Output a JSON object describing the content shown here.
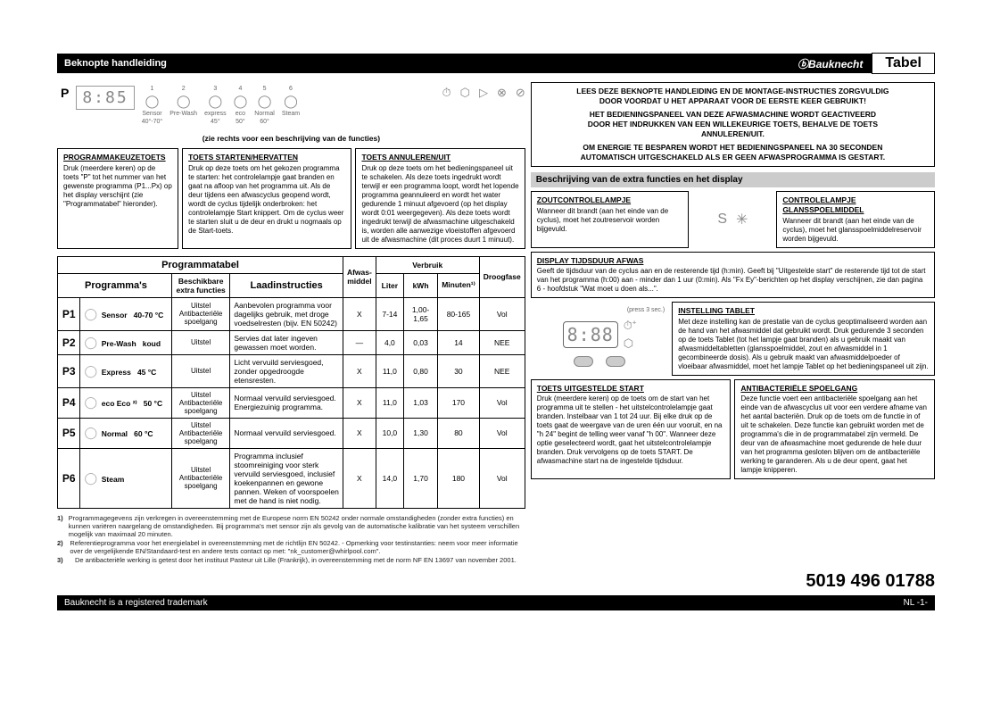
{
  "header": {
    "title": "Beknopte handleiding",
    "brand": "Bauknecht",
    "tab": "Tabel"
  },
  "panel": {
    "p_label": "P",
    "display": "8:85",
    "progs": [
      {
        "n": "1",
        "name": "Sensor",
        "t": "40°-70°"
      },
      {
        "n": "2",
        "name": "Pre-Wash",
        "t": ""
      },
      {
        "n": "3",
        "name": "express",
        "t": "45°"
      },
      {
        "n": "4",
        "name": "eco",
        "t": "50°"
      },
      {
        "n": "5",
        "name": "Normal",
        "t": "60°"
      },
      {
        "n": "6",
        "name": "Steam",
        "t": ""
      }
    ],
    "right_icons": [
      "⏱",
      "⬡",
      "▷",
      "⊗",
      "⊘"
    ]
  },
  "fn_note": "(zie rechts voor een beschrijving van de functies)",
  "keys": {
    "prog": {
      "hd": "PROGRAMMAKEUZETOETS",
      "txt": "Druk (meerdere keren) op de toets \"P\" tot het nummer van het gewenste programma (P1...Px) op het display verschijnt (zie \"Programmatabel\" hieronder)."
    },
    "start": {
      "hd": "TOETS STARTEN/HERVATTEN",
      "txt": "Druk op deze toets om het gekozen programma te starten: het controlelampje gaat branden en gaat na afloop van het programma uit.\nAls de deur tijdens een afwascyclus geopend wordt, wordt de cyclus tijdelijk onderbroken: het controlelampje Start knippert. Om de cyclus weer te starten sluit u de deur en drukt u nogmaals op de Start-toets."
    },
    "cancel": {
      "hd": "TOETS ANNULEREN/UIT",
      "txt": "Druk op deze toets om het bedieningspaneel uit te schakelen. Als deze toets ingedrukt wordt terwijl er een programma loopt, wordt het lopende programma geannuleerd en wordt het water gedurende 1 minuut afgevoerd (op het display wordt 0:01 weergegeven).\nAls deze toets wordt ingedrukt terwijl de afwasmachine uitgeschakeld is, worden alle aanwezige vloeistoffen afgevoerd uit de afwasmachine (dit proces duurt 1 minuut)."
    }
  },
  "warn": {
    "l1a": "LEES DEZE BEKNOPTE HANDLEIDING EN DE MONTAGE-INSTRUCTIES ZORGVULDIG",
    "l1b": "DOOR VOORDAT U HET APPARAAT VOOR DE EERSTE KEER GEBRUIKT!",
    "l2a": "HET BEDIENINGSPANEEL VAN DEZE AFWASMACHINE WORDT GEACTIVEERD",
    "l2b": "DOOR HET INDRUKKEN VAN EEN WILLEKEURIGE TOETS, BEHALVE DE TOETS",
    "l2c": "ANNULEREN/UIT.",
    "l3a": "OM ENERGIE TE BESPAREN WORDT HET BEDIENINGSPANEEL NA 30 SECONDEN",
    "l3b": "AUTOMATISCH UITGESCHAKELD ALS ER GEEN AFWASPROGRAMMA IS GESTART."
  },
  "sect_title": "Beschrijving van de extra functies en het display",
  "desc": {
    "salt": {
      "hd": "ZOUTCONTROLELAMPJE",
      "txt": "Wanneer dit brandt (aan het einde van de cyclus), moet het zoutreservoir worden bijgevuld."
    },
    "rinse": {
      "hd": "CONTROLELAMPJE GLANSSPOELMIDDEL",
      "txt": "Wanneer dit brandt (aan het einde van de cyclus), moet het glansspoelmiddelreservoir worden bijgevuld."
    },
    "disp": {
      "hd": "DISPLAY TIJDSDUUR AFWAS",
      "txt": "Geeft de tijdsduur van de cyclus aan en de resterende tijd (h:min). Geeft bij \"Uitgestelde start\" de resterende tijd tot de start van het programma (h:00) aan - minder dan 1 uur (0:min).\nAls \"Fx Ey\"-berichten op het display verschijnen, zie dan pagina 6 - hoofdstuk \"Wat moet u doen als...\"."
    },
    "tablet": {
      "hd": "INSTELLING TABLET",
      "press": "(press 3 sec.)",
      "txt": "Met deze instelling kan de prestatie van de cyclus geoptimaliseerd worden aan de hand van het afwasmiddel dat gebruikt wordt. Druk gedurende 3 seconden op de toets Tablet (tot het lampje gaat branden) als u gebruik maakt van afwasmiddeltabletten (glansspoelmiddel, zout en afwasmiddel in 1 gecombineerde dosis).\nAls u gebruik maakt van afwasmiddelpoeder of vloeibaar afwasmiddel, moet het lampje Tablet op het bedieningspaneel uit zijn."
    },
    "delay": {
      "hd": "TOETS UITGESTELDE START",
      "txt": "Druk (meerdere keren) op de toets om de start van het programma uit te stellen - het uitstelcontrolelampje gaat branden. Instelbaar van 1 tot 24 uur.\nBij elke druk op de toets gaat de weergave van de uren één uur vooruit, en na \"h 24\" begint de telling weer vanaf \"h 00\". Wanneer deze optie geselecteerd wordt, gaat het uitstelcontrolelampje branden. Druk vervolgens op de toets START. De afwasmachine start na de ingestelde tijdsduur."
    },
    "anti": {
      "hd": "ANTIBACTERIËLE SPOELGANG",
      "txt": "Deze functie voert een antibacteriële spoelgang aan het einde van de afwascyclus uit voor een verdere afname van het aantal bacteriën. Druk op de toets om de functie in of uit te schakelen. Deze functie kan gebruikt worden met de programma's die in de programmatabel zijn vermeld. De deur van de afwasmachine moet gedurende de hele duur van het programma gesloten blijven om de antibacteriële werking te garanderen. Als u de deur opent, gaat het lampje knipperen."
    }
  },
  "table": {
    "title": "Programmatabel",
    "h_prog": "Programma's",
    "h_extra": "Beschikbare extra functies",
    "h_load": "Laadinstructies",
    "h_det": "Afwas-middel",
    "h_cons": "Verbruik",
    "h_l": "Liter",
    "h_kwh": "kWh",
    "h_min": "Minuten¹⁾",
    "h_dry": "Droogfase",
    "rows": [
      {
        "p": "P1",
        "name": "Sensor",
        "temp": "40-70 °C",
        "extra": "Uitstel Antibacteriële spoelgang",
        "load": "Aanbevolen programma voor dagelijks gebruik, met droge voedselresten (bijv. EN 50242)",
        "det": "X",
        "l": "7-14",
        "kwh": "1,00-1,65",
        "min": "80-165",
        "dry": "Vol"
      },
      {
        "p": "P2",
        "name": "Pre-Wash",
        "temp": "koud",
        "extra": "Uitstel",
        "load": "Servies dat later ingeven gewassen moet worden.",
        "det": "—",
        "l": "4,0",
        "kwh": "0,03",
        "min": "14",
        "dry": "NEE"
      },
      {
        "p": "P3",
        "name": "Express",
        "temp": "45 °C",
        "extra": "Uitstel",
        "load": "Licht vervuild serviesgoed, zonder opgedroogde etensresten.",
        "det": "X",
        "l": "11,0",
        "kwh": "0,80",
        "min": "30",
        "dry": "NEE"
      },
      {
        "p": "P4",
        "name": "eco Eco ²⁾",
        "temp": "50 °C",
        "extra": "Uitstel Antibacteriële spoelgang",
        "load": "Normaal vervuild serviesgoed. Energiezuinig programma.",
        "det": "X",
        "l": "11,0",
        "kwh": "1,03",
        "min": "170",
        "dry": "Vol"
      },
      {
        "p": "P5",
        "name": "Normal",
        "temp": "60 °C",
        "extra": "Uitstel Antibacteriële spoelgang",
        "load": "Normaal vervuild serviesgoed.",
        "det": "X",
        "l": "10,0",
        "kwh": "1,30",
        "min": "80",
        "dry": "Vol"
      },
      {
        "p": "P6",
        "name": "Steam",
        "temp": "",
        "extra": "Uitstel Antibacteriële spoelgang",
        "load": "Programma inclusief stoomreiniging voor sterk vervuild serviesgoed, inclusief koekenpannen en gewone pannen. Weken of voorspoelen met de hand is niet nodig.",
        "det": "X",
        "l": "14,0",
        "kwh": "1,70",
        "min": "180",
        "dry": "Vol"
      }
    ]
  },
  "foot": {
    "f1": "Programmagegevens zijn verkregen in overeenstemming met de Europese norm EN 50242 onder normale omstandigheden (zonder extra functies) en kunnen variëren naargelang de omstandigheden. Bij programma's met sensor zijn als gevolg van de automatische kalibratie van het systeem verschillen mogelijk van maximaal 20 minuten.",
    "f2": "Referentieprogramma voor het energielabel in overeenstemming met de richtlijn EN 50242. - Opmerking voor testinstanties: neem voor meer informatie over de vergelijkende EN/Standaard-test en andere tests contact op met: \"nk_customer@whirlpool.com\".",
    "f3": "De antibacteriële werking is getest door het instituut Pasteur uit Lille (Frankrijk), in overeenstemming met de norm NF EN 13697 van november 2001."
  },
  "partno": "5019 496 01788",
  "bottom": {
    "l": "Bauknecht is a registered trademark",
    "r": "NL -1-"
  },
  "display_big": "8:88"
}
